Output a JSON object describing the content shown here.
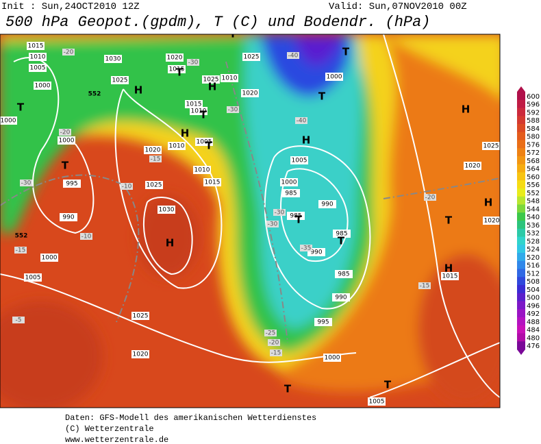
{
  "header": {
    "init": "Init : Sun,24OCT2010 12Z",
    "valid": "Valid: Sun,07NOV2010 00Z",
    "title": "500 hPa Geopot.(gpdm), T (C) und Bodendr. (hPa)"
  },
  "colorbar": {
    "labels": [
      600,
      596,
      592,
      588,
      584,
      580,
      576,
      572,
      568,
      564,
      560,
      556,
      552,
      548,
      544,
      540,
      536,
      532,
      528,
      524,
      520,
      516,
      512,
      508,
      504,
      500,
      496,
      492,
      488,
      484,
      480,
      476
    ]
  },
  "map": {
    "pressure_labels": [
      "1015",
      "1010",
      "1005",
      "1000",
      "1030",
      "1025",
      "1020",
      "1015",
      "1025",
      "1010",
      "1020",
      "1025",
      "1015",
      "1010",
      "1005",
      "1020",
      "1010",
      "1010",
      "1015",
      "1025",
      "1030",
      "1025",
      "1020",
      "1005",
      "1000",
      "995",
      "990",
      "1000",
      "1000",
      "1000",
      "1005",
      "1000",
      "985",
      "985",
      "990",
      "985",
      "990",
      "985",
      "990",
      "995",
      "1000",
      "1005",
      "1015",
      "1020",
      "1025",
      "1020"
    ],
    "temperature_labels": [
      "-20",
      "-30",
      "-30",
      "-40",
      "-40",
      "-20",
      "-15",
      "-10",
      "-30",
      "-10",
      "-15",
      "-5",
      "-30",
      "-30",
      "-35",
      "-25",
      "-20",
      "-15",
      "-20",
      "-15"
    ],
    "geopotential_labels": [
      "552",
      "552"
    ],
    "highs": [
      "H",
      "H",
      "H",
      "H",
      "H",
      "H",
      "H",
      "H"
    ],
    "lows": [
      "T",
      "T",
      "T",
      "T",
      "T",
      "T",
      "T",
      "T",
      "T",
      "T",
      "T",
      "T",
      "T"
    ]
  },
  "footer": {
    "lines": [
      "Daten: GFS-Modell des amerikanischen Wetterdienstes",
      "(C) Wetterzentrale",
      "www.wetterzentrale.de"
    ]
  }
}
